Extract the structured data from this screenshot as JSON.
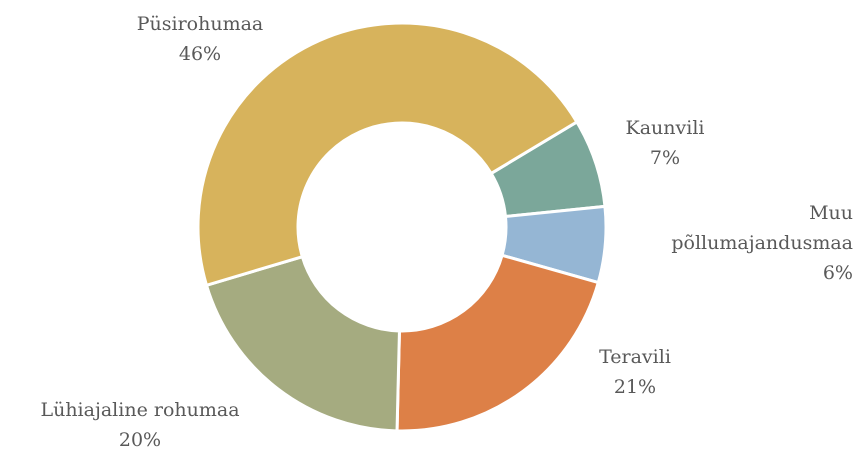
{
  "chart_data": {
    "type": "donut",
    "categories": [
      "Kaunvili",
      "Muu põllumajandusmaa",
      "Teravili",
      "Lühiajaline rohumaa",
      "Püsirohumaa"
    ],
    "values": [
      7,
      6,
      21,
      20,
      46
    ],
    "value_labels": [
      "7%",
      "6%",
      "21%",
      "20%",
      "46%"
    ],
    "colors": [
      "#7ba79a",
      "#95b6d4",
      "#dd8047",
      "#a5ab80",
      "#d7b35c"
    ]
  }
}
